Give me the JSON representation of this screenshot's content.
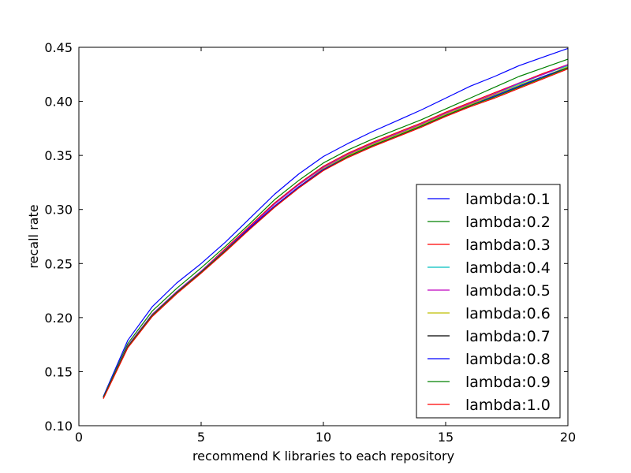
{
  "chart_data": {
    "type": "line",
    "title": "",
    "xlabel": "recommend K libraries to each repository",
    "ylabel": "recall rate",
    "xlim": [
      0,
      20
    ],
    "ylim": [
      0.1,
      0.45
    ],
    "xticks": [
      0,
      5,
      10,
      15,
      20
    ],
    "xtick_labels": [
      "0",
      "5",
      "10",
      "15",
      "20"
    ],
    "yticks": [
      0.1,
      0.15,
      0.2,
      0.25,
      0.3,
      0.35,
      0.4,
      0.45
    ],
    "ytick_labels": [
      "0.10",
      "0.15",
      "0.20",
      "0.25",
      "0.30",
      "0.35",
      "0.40",
      "0.45"
    ],
    "grid": false,
    "legend_position": "lower-right",
    "x": [
      1,
      2,
      3,
      4,
      5,
      6,
      7,
      8,
      9,
      10,
      11,
      12,
      13,
      14,
      15,
      16,
      17,
      18,
      19,
      20
    ],
    "series": [
      {
        "name": "lambda:0.1",
        "color": "#0000ff",
        "values": [
          0.127,
          0.179,
          0.21,
          0.232,
          0.25,
          0.27,
          0.292,
          0.314,
          0.333,
          0.349,
          0.361,
          0.372,
          0.382,
          0.392,
          0.403,
          0.414,
          0.423,
          0.433,
          0.441,
          0.449
        ]
      },
      {
        "name": "lambda:0.2",
        "color": "#008000",
        "values": [
          0.126,
          0.176,
          0.206,
          0.227,
          0.246,
          0.266,
          0.287,
          0.309,
          0.327,
          0.343,
          0.355,
          0.365,
          0.374,
          0.383,
          0.393,
          0.403,
          0.413,
          0.423,
          0.431,
          0.439
        ]
      },
      {
        "name": "lambda:0.3",
        "color": "#ff0000",
        "values": [
          0.126,
          0.174,
          0.203,
          0.224,
          0.243,
          0.264,
          0.285,
          0.306,
          0.324,
          0.34,
          0.352,
          0.362,
          0.371,
          0.38,
          0.39,
          0.399,
          0.408,
          0.417,
          0.426,
          0.434
        ]
      },
      {
        "name": "lambda:0.4",
        "color": "#00bfbf",
        "values": [
          0.126,
          0.174,
          0.203,
          0.224,
          0.243,
          0.263,
          0.284,
          0.305,
          0.323,
          0.339,
          0.351,
          0.361,
          0.37,
          0.379,
          0.389,
          0.398,
          0.407,
          0.416,
          0.425,
          0.433
        ]
      },
      {
        "name": "lambda:0.5",
        "color": "#bf00bf",
        "values": [
          0.126,
          0.174,
          0.203,
          0.224,
          0.243,
          0.263,
          0.284,
          0.305,
          0.323,
          0.339,
          0.351,
          0.361,
          0.37,
          0.379,
          0.389,
          0.398,
          0.407,
          0.417,
          0.425,
          0.434
        ]
      },
      {
        "name": "lambda:0.6",
        "color": "#bfbf00",
        "values": [
          0.126,
          0.173,
          0.202,
          0.223,
          0.242,
          0.262,
          0.283,
          0.303,
          0.321,
          0.338,
          0.35,
          0.36,
          0.369,
          0.378,
          0.388,
          0.397,
          0.406,
          0.415,
          0.423,
          0.432
        ]
      },
      {
        "name": "lambda:0.7",
        "color": "#000000",
        "values": [
          0.126,
          0.173,
          0.202,
          0.223,
          0.242,
          0.262,
          0.283,
          0.303,
          0.321,
          0.337,
          0.349,
          0.359,
          0.368,
          0.377,
          0.387,
          0.396,
          0.405,
          0.414,
          0.423,
          0.431
        ]
      },
      {
        "name": "lambda:0.8",
        "color": "#0000ff",
        "values": [
          0.126,
          0.173,
          0.202,
          0.223,
          0.242,
          0.262,
          0.283,
          0.303,
          0.321,
          0.337,
          0.349,
          0.359,
          0.368,
          0.377,
          0.387,
          0.396,
          0.405,
          0.414,
          0.423,
          0.431
        ]
      },
      {
        "name": "lambda:0.9",
        "color": "#008000",
        "values": [
          0.126,
          0.173,
          0.202,
          0.223,
          0.242,
          0.262,
          0.282,
          0.302,
          0.32,
          0.336,
          0.349,
          0.359,
          0.368,
          0.377,
          0.387,
          0.396,
          0.404,
          0.413,
          0.422,
          0.431
        ]
      },
      {
        "name": "lambda:1.0",
        "color": "#ff0000",
        "values": [
          0.125,
          0.172,
          0.201,
          0.222,
          0.241,
          0.261,
          0.282,
          0.302,
          0.32,
          0.336,
          0.348,
          0.358,
          0.367,
          0.376,
          0.386,
          0.395,
          0.403,
          0.412,
          0.421,
          0.43
        ]
      }
    ]
  }
}
